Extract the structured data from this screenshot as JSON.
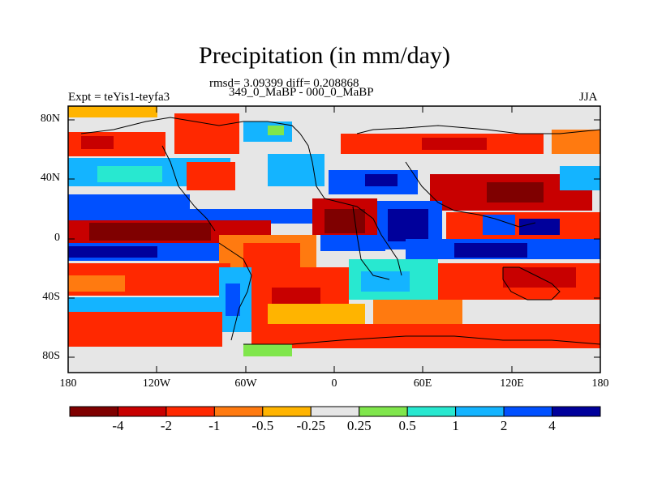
{
  "map": {
    "title": "Precipitation (in mm/day)",
    "stats_line": "rmsd= 3.09399 diff= 0.208868",
    "comparison_line": "349_0_MaBP - 000_0_MaBP",
    "experiment_label": "Expt = teYis1-teyfa3",
    "season_label": "JJA",
    "lat_ticks": [
      "80N",
      "40N",
      "0",
      "40S",
      "80S"
    ],
    "lon_ticks": [
      "180",
      "120W",
      "60W",
      "0",
      "60E",
      "120E",
      "180"
    ]
  },
  "colorbar": {
    "colors": [
      "#7f0000",
      "#c80000",
      "#ff2800",
      "#ff7a10",
      "#ffb400",
      "#e6e6e6",
      "#80e64c",
      "#28e8d0",
      "#14b4ff",
      "#0050ff",
      "#00009b"
    ],
    "labels": [
      "-4",
      "-2",
      "-1",
      "-0.5",
      "-0.25",
      "0.25",
      "0.5",
      "1",
      "2",
      "4"
    ]
  }
}
